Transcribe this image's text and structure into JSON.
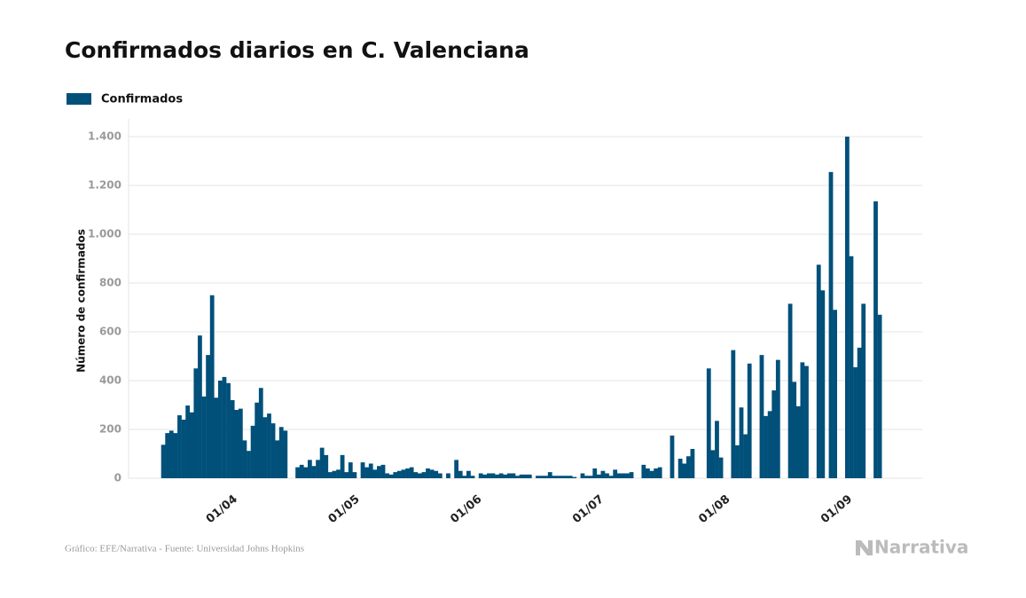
{
  "chart_data": {
    "type": "bar",
    "title": "Confirmados diarios en C. Valenciana",
    "y_label": "Número de confirmados",
    "source": "Gráfico: EFE/Narrativa - Fuente: Universidad Johns Hopkins",
    "brand": "Narrativa",
    "legend": "top-left",
    "grid": true,
    "ylim": [
      0,
      1400
    ],
    "yticks": [
      0,
      200,
      400,
      600,
      800,
      {
        "value": 1000,
        "label": "1.000"
      },
      {
        "value": 1200,
        "label": "1.200"
      },
      {
        "value": 1400,
        "label": "1.400"
      }
    ],
    "categories": [
      null,
      null,
      null,
      null,
      null,
      null,
      null,
      null,
      null,
      null,
      null,
      null,
      null,
      null,
      null,
      null,
      null,
      "01/04",
      null,
      null,
      null,
      null,
      null,
      null,
      null,
      null,
      null,
      null,
      null,
      null,
      null,
      null,
      null,
      null,
      null,
      null,
      null,
      null,
      null,
      null,
      null,
      null,
      null,
      null,
      null,
      null,
      null,
      "01/05",
      null,
      null,
      null,
      null,
      null,
      null,
      null,
      null,
      null,
      null,
      null,
      null,
      null,
      null,
      null,
      null,
      null,
      null,
      null,
      null,
      null,
      null,
      null,
      null,
      null,
      null,
      null,
      null,
      null,
      "01/06",
      null,
      null,
      null,
      null,
      null,
      null,
      null,
      null,
      null,
      null,
      null,
      null,
      null,
      null,
      null,
      null,
      null,
      null,
      null,
      null,
      null,
      null,
      null,
      null,
      null,
      null,
      null,
      null,
      null,
      "01/07",
      null,
      null,
      null,
      null,
      null,
      null,
      null,
      null,
      null,
      null,
      null,
      null,
      null,
      null,
      null,
      null,
      null,
      null,
      null,
      null,
      null,
      null,
      null,
      null,
      null,
      null,
      null,
      null,
      null,
      null,
      "01/08",
      null,
      null,
      null,
      null,
      null,
      null,
      null,
      null,
      null,
      null,
      null,
      null,
      null,
      null,
      null,
      null,
      null,
      null,
      null,
      null,
      null,
      null,
      null,
      null,
      null,
      null,
      null,
      null,
      null,
      "01/09",
      null,
      null,
      null,
      null,
      null,
      null,
      null,
      null
    ],
    "series": [
      {
        "name": "Confirmados",
        "color": "#00507a",
        "values": [
          137,
          185,
          195,
          185,
          258,
          240,
          298,
          270,
          450,
          585,
          335,
          505,
          750,
          330,
          400,
          415,
          390,
          320,
          280,
          285,
          155,
          112,
          215,
          310,
          370,
          250,
          265,
          225,
          155,
          210,
          195,
          0,
          0,
          45,
          55,
          45,
          75,
          50,
          75,
          125,
          95,
          25,
          30,
          35,
          95,
          25,
          65,
          25,
          0,
          65,
          45,
          60,
          35,
          50,
          55,
          20,
          15,
          25,
          30,
          35,
          40,
          45,
          25,
          20,
          25,
          40,
          35,
          30,
          20,
          0,
          20,
          0,
          75,
          30,
          10,
          30,
          10,
          0,
          20,
          15,
          20,
          20,
          15,
          20,
          15,
          20,
          20,
          10,
          15,
          15,
          15,
          0,
          10,
          10,
          10,
          25,
          10,
          10,
          10,
          10,
          10,
          5,
          0,
          20,
          10,
          10,
          40,
          15,
          30,
          20,
          10,
          35,
          20,
          20,
          20,
          25,
          0,
          0,
          55,
          40,
          30,
          40,
          45,
          0,
          0,
          175,
          0,
          80,
          60,
          90,
          120,
          0,
          0,
          0,
          450,
          115,
          235,
          85,
          0,
          0,
          525,
          135,
          290,
          180,
          470,
          0,
          0,
          505,
          255,
          275,
          360,
          485,
          0,
          0,
          715,
          395,
          295,
          475,
          460,
          0,
          0,
          875,
          770,
          0,
          1255,
          690,
          0,
          0,
          1400,
          910,
          455,
          535,
          715,
          0,
          0,
          1135,
          670
        ]
      }
    ]
  }
}
